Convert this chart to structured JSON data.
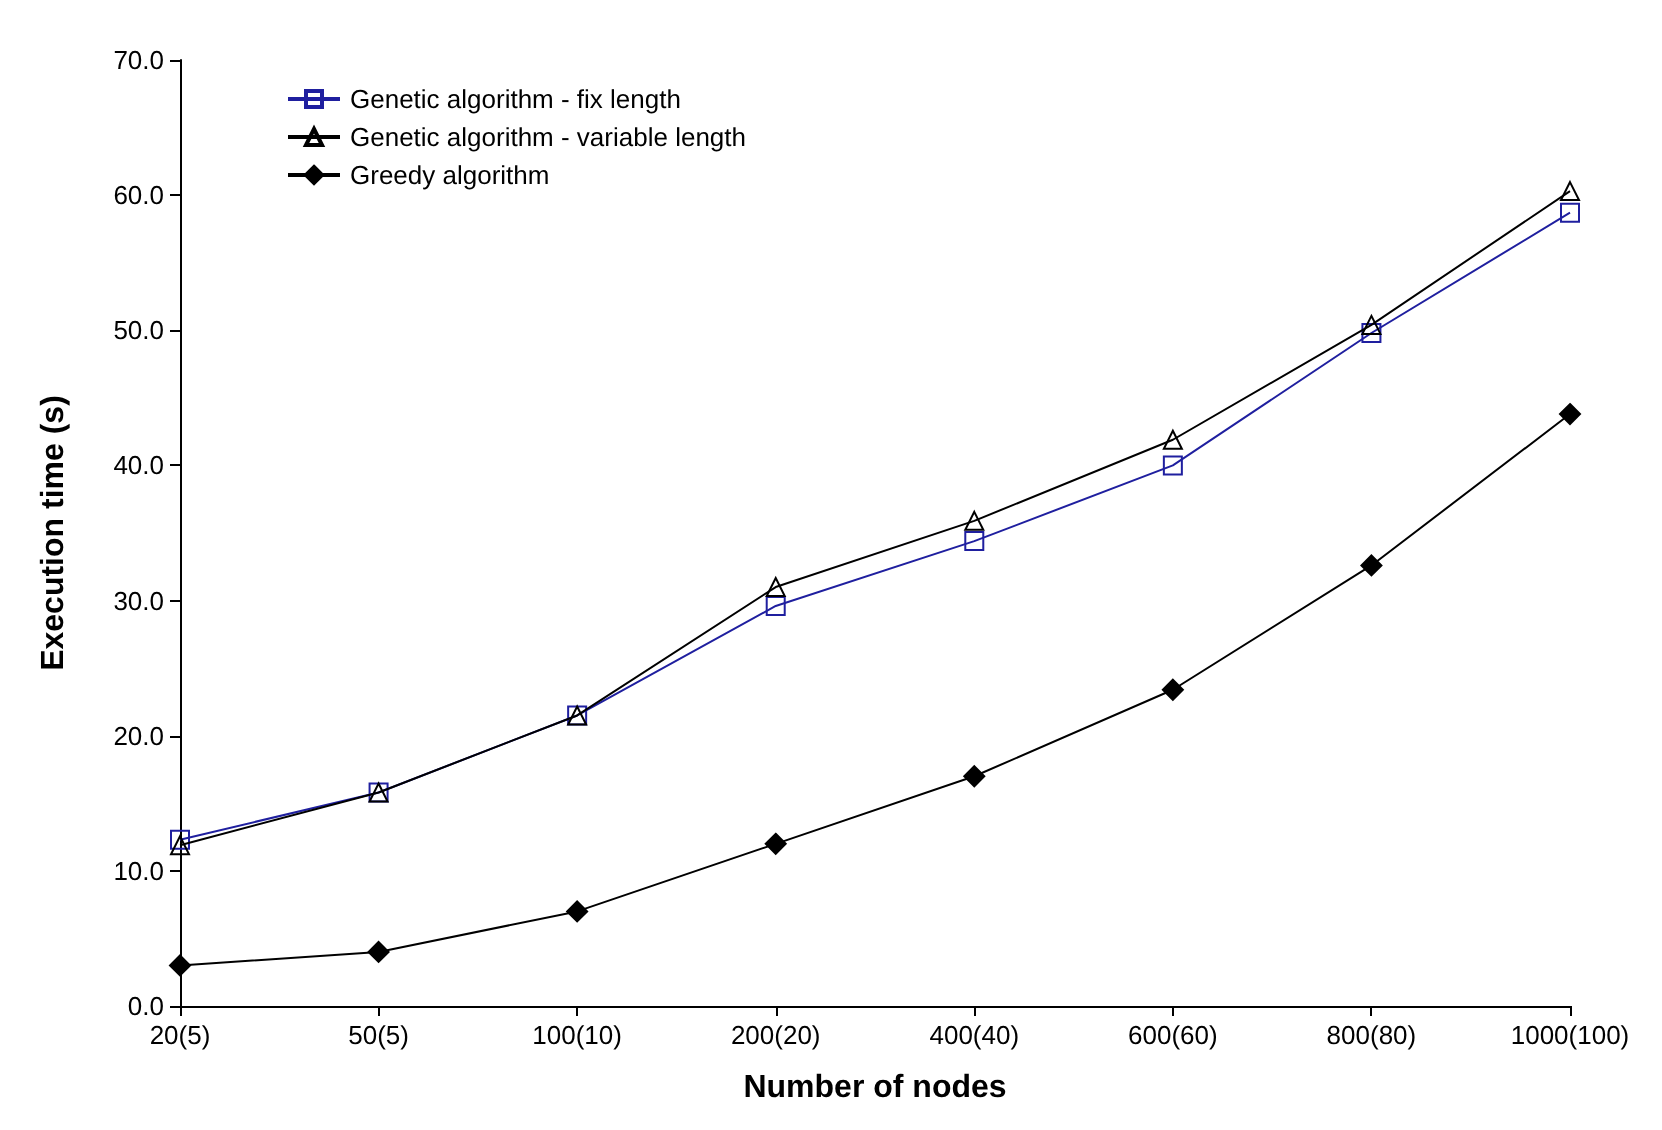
{
  "chart_data": {
    "type": "line",
    "xlabel": "Number of nodes",
    "ylabel": "Execution time (s)",
    "categories": [
      "20(5)",
      "50(5)",
      "100(10)",
      "200(20)",
      "400(40)",
      "600(60)",
      "800(80)",
      "1000(100)"
    ],
    "ylim": [
      0,
      70
    ],
    "yticks": [
      {
        "value": 0,
        "label": "0.0"
      },
      {
        "value": 10,
        "label": "10.0"
      },
      {
        "value": 20,
        "label": "20.0"
      },
      {
        "value": 30,
        "label": "30.0"
      },
      {
        "value": 40,
        "label": "40.0"
      },
      {
        "value": 50,
        "label": "50.0"
      },
      {
        "value": 60,
        "label": "60.0"
      },
      {
        "value": 70,
        "label": "70.0"
      }
    ],
    "grid": false,
    "legend": "top left",
    "series": [
      {
        "name": "Genetic algorithm - fix length",
        "color": "#1f1f9f",
        "marker": "square",
        "values": [
          12.3,
          15.8,
          21.5,
          29.6,
          34.4,
          40.0,
          49.8,
          58.7
        ]
      },
      {
        "name": "Genetic algorithm - variable length",
        "color": "#000000",
        "marker": "triangle",
        "values": [
          11.9,
          15.8,
          21.5,
          31.0,
          35.9,
          41.9,
          50.4,
          60.3
        ]
      },
      {
        "name": "Greedy algorithm",
        "color": "#000000",
        "marker": "diamond",
        "values": [
          3.0,
          4.0,
          7.0,
          12.0,
          17.0,
          23.4,
          32.6,
          43.8
        ]
      }
    ]
  }
}
